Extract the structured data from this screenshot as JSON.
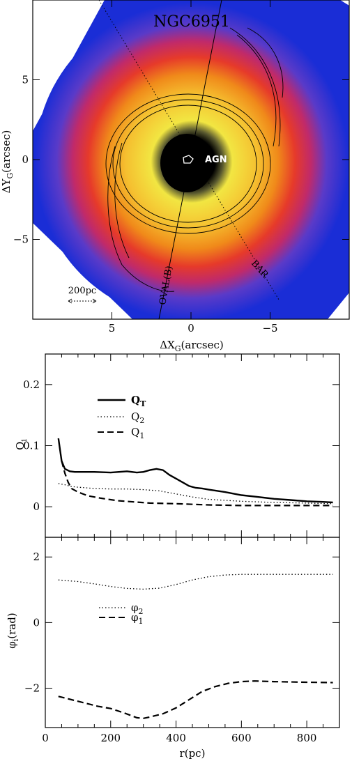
{
  "chart_data": [
    {
      "type": "heatmap",
      "title": "NGC6951",
      "xlabel": "ΔX",
      "xlabel_sub": "G",
      "xlabel_unit": "(arcsec)",
      "ylabel": "ΔY",
      "ylabel_sub": "G",
      "ylabel_unit": "(arcsec)",
      "xlim": [
        10,
        -10
      ],
      "ylim": [
        -10,
        10
      ],
      "x_ticks": [
        5,
        0,
        -5
      ],
      "y_ticks": [
        5,
        0,
        -5
      ],
      "annotations": {
        "agn": "AGN",
        "bar": "BAR",
        "oval": "OVAL(B)",
        "scale_bar": "200pc"
      },
      "colormap": [
        "#1a2dd6",
        "#3a4de8",
        "#c02a6a",
        "#e63a2a",
        "#f5a21a",
        "#f2e642",
        "#6b6b3a",
        "#000000"
      ]
    },
    {
      "type": "line",
      "xlabel": "r(pc)",
      "ylabel": "Q",
      "ylabel_sub": "i",
      "xlim": [
        0,
        900
      ],
      "ylim": [
        -0.05,
        0.25
      ],
      "y_ticks": [
        0,
        0.1,
        0.2
      ],
      "legend_position": "top-left",
      "series": [
        {
          "name": "Q",
          "name_sub": "T",
          "style": "solid",
          "x": [
            40,
            50,
            60,
            75,
            90,
            110,
            150,
            200,
            250,
            280,
            300,
            320,
            340,
            360,
            380,
            400,
            420,
            440,
            460,
            480,
            500,
            550,
            600,
            650,
            700,
            750,
            800,
            850,
            880
          ],
          "y": [
            0.112,
            0.075,
            0.062,
            0.058,
            0.057,
            0.057,
            0.057,
            0.056,
            0.058,
            0.056,
            0.057,
            0.06,
            0.062,
            0.06,
            0.052,
            0.046,
            0.04,
            0.034,
            0.031,
            0.03,
            0.028,
            0.024,
            0.019,
            0.016,
            0.013,
            0.011,
            0.009,
            0.008,
            0.007
          ]
        },
        {
          "name": "Q",
          "name_sub": "2",
          "style": "dotted",
          "x": [
            40,
            60,
            80,
            100,
            150,
            200,
            250,
            300,
            350,
            400,
            450,
            500,
            600,
            700,
            800,
            880
          ],
          "y": [
            0.038,
            0.036,
            0.033,
            0.032,
            0.03,
            0.029,
            0.029,
            0.028,
            0.026,
            0.021,
            0.016,
            0.012,
            0.009,
            0.007,
            0.006,
            0.005
          ]
        },
        {
          "name": "Q",
          "name_sub": "1",
          "style": "dashed",
          "x": [
            50,
            60,
            70,
            80,
            100,
            130,
            170,
            220,
            270,
            320,
            400,
            500,
            600,
            700,
            800,
            880
          ],
          "y": [
            0.075,
            0.055,
            0.04,
            0.03,
            0.024,
            0.018,
            0.014,
            0.01,
            0.008,
            0.006,
            0.005,
            0.003,
            0.002,
            0.002,
            0.002,
            0.002
          ]
        }
      ]
    },
    {
      "type": "line",
      "xlabel": "r(pc)",
      "ylabel": "φ",
      "ylabel_sub": "i",
      "ylabel_unit": "(rad)",
      "xlim": [
        0,
        900
      ],
      "ylim": [
        -3.2,
        2.6
      ],
      "y_ticks": [
        2,
        0,
        -2
      ],
      "x_ticks": [
        0,
        200,
        400,
        600,
        800
      ],
      "legend_position": "center-left",
      "series": [
        {
          "name": "φ",
          "name_sub": "2",
          "style": "dotted",
          "x": [
            40,
            100,
            150,
            200,
            250,
            300,
            350,
            400,
            450,
            500,
            550,
            600,
            700,
            800,
            880
          ],
          "y": [
            1.3,
            1.25,
            1.18,
            1.1,
            1.04,
            1.02,
            1.05,
            1.16,
            1.3,
            1.4,
            1.45,
            1.47,
            1.47,
            1.47,
            1.47
          ]
        },
        {
          "name": "φ",
          "name_sub": "1",
          "style": "dashed",
          "x": [
            40,
            80,
            120,
            160,
            200,
            240,
            280,
            300,
            320,
            360,
            400,
            440,
            480,
            520,
            560,
            600,
            640,
            700,
            800,
            880
          ],
          "y": [
            -2.25,
            -2.35,
            -2.45,
            -2.55,
            -2.62,
            -2.75,
            -2.9,
            -2.92,
            -2.88,
            -2.78,
            -2.6,
            -2.35,
            -2.1,
            -1.95,
            -1.85,
            -1.8,
            -1.78,
            -1.8,
            -1.82,
            -1.83
          ]
        }
      ]
    }
  ]
}
